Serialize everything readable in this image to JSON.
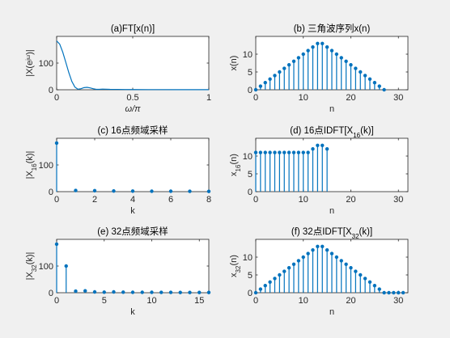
{
  "colors": {
    "series": "#0072bd",
    "background": "#f0f0f0",
    "axes": "#ffffff",
    "axis_line": "#262626"
  },
  "chart_data": [
    {
      "id": "a",
      "type": "line",
      "title": "(a)FT[x(n)]",
      "xlabel": "ω/π",
      "ylabel": "|X(e^jω)|",
      "xlim": [
        0,
        1
      ],
      "ylim": [
        0,
        200
      ],
      "xticks": [
        0,
        0.5,
        1
      ],
      "yticks": [
        0,
        100
      ],
      "x": [
        0,
        0.02,
        0.04,
        0.06,
        0.08,
        0.1,
        0.12,
        0.14,
        0.16,
        0.18,
        0.2,
        0.22,
        0.24,
        0.26,
        0.28,
        0.3,
        0.35,
        0.4,
        0.45,
        0.5,
        0.6,
        0.7,
        0.8,
        0.9,
        1.0
      ],
      "y": [
        183,
        171,
        141,
        103,
        64,
        31,
        10,
        2,
        4,
        8,
        9,
        7,
        4,
        1.5,
        1.5,
        2.5,
        1.5,
        1.3,
        1,
        0.8,
        0.6,
        0.5,
        0.4,
        0.3,
        0.3
      ]
    },
    {
      "id": "b",
      "type": "stem",
      "title": "(b) 三角波序列x(n)",
      "xlabel": "n",
      "ylabel": "x(n)",
      "xlim": [
        0,
        32
      ],
      "ylim": [
        0,
        15
      ],
      "xticks": [
        0,
        10,
        20,
        30
      ],
      "yticks": [
        0,
        5,
        10
      ],
      "x": [
        0,
        1,
        2,
        3,
        4,
        5,
        6,
        7,
        8,
        9,
        10,
        11,
        12,
        13,
        14,
        15,
        16,
        17,
        18,
        19,
        20,
        21,
        22,
        23,
        24,
        25,
        26,
        27
      ],
      "y": [
        0,
        1,
        2,
        3,
        4,
        5,
        6,
        7,
        8,
        9,
        10,
        11,
        12,
        13,
        13,
        12,
        11,
        10,
        9,
        8,
        7,
        6,
        5,
        4,
        3,
        2,
        1,
        0
      ]
    },
    {
      "id": "c",
      "type": "stem",
      "title": "(c) 16点频域采样",
      "xlabel": "k",
      "ylabel": "|X16(k)|",
      "xlim": [
        0,
        8
      ],
      "ylim": [
        0,
        200
      ],
      "xticks": [
        0,
        2,
        4,
        6,
        8
      ],
      "yticks": [
        0,
        100
      ],
      "x": [
        0,
        1,
        2,
        3,
        4,
        5,
        6,
        7,
        8
      ],
      "y": [
        182,
        4.5,
        3.5,
        2.5,
        2,
        1.5,
        1.5,
        1.3,
        1
      ]
    },
    {
      "id": "d",
      "type": "stem",
      "title": "(d) 16点IDFT[X16(k)]",
      "xlabel": "n",
      "ylabel": "x16(n)",
      "xlim": [
        0,
        32
      ],
      "ylim": [
        0,
        15
      ],
      "xticks": [
        0,
        10,
        20,
        30
      ],
      "yticks": [
        0,
        5,
        10
      ],
      "x": [
        0,
        1,
        2,
        3,
        4,
        5,
        6,
        7,
        8,
        9,
        10,
        11,
        12,
        13,
        14,
        15
      ],
      "y": [
        11,
        11,
        11,
        11,
        11,
        11,
        11,
        11,
        11,
        11,
        11,
        11,
        12,
        13,
        13,
        12
      ]
    },
    {
      "id": "e",
      "type": "stem",
      "title": "(e) 32点频域采样",
      "xlabel": "k",
      "ylabel": "|X32(k)|",
      "xlim": [
        0,
        16
      ],
      "ylim": [
        0,
        200
      ],
      "xticks": [
        0,
        5,
        10,
        15
      ],
      "yticks": [
        0,
        100
      ],
      "x": [
        0,
        1,
        2,
        3,
        4,
        5,
        6,
        7,
        8,
        9,
        10,
        11,
        12,
        13,
        14,
        15,
        16
      ],
      "y": [
        182,
        100,
        6,
        7,
        3,
        2,
        3,
        2,
        1.5,
        1.5,
        1.5,
        1.2,
        1.2,
        1,
        1,
        1,
        1
      ]
    },
    {
      "id": "f",
      "type": "stem",
      "title": "(f) 32点IDFT[X32(k)]",
      "xlabel": "n",
      "ylabel": "x32(n)",
      "xlim": [
        0,
        32
      ],
      "ylim": [
        0,
        15
      ],
      "xticks": [
        0,
        10,
        20,
        30
      ],
      "yticks": [
        0,
        5,
        10
      ],
      "x": [
        0,
        1,
        2,
        3,
        4,
        5,
        6,
        7,
        8,
        9,
        10,
        11,
        12,
        13,
        14,
        15,
        16,
        17,
        18,
        19,
        20,
        21,
        22,
        23,
        24,
        25,
        26,
        27,
        28,
        29,
        30,
        31
      ],
      "y": [
        0,
        1,
        2,
        3,
        4,
        5,
        6,
        7,
        8,
        9,
        10,
        11,
        12,
        13,
        13,
        12,
        11,
        10,
        9,
        8,
        7,
        6,
        5,
        4,
        3,
        2,
        1,
        0,
        0,
        0,
        0,
        0
      ]
    }
  ]
}
